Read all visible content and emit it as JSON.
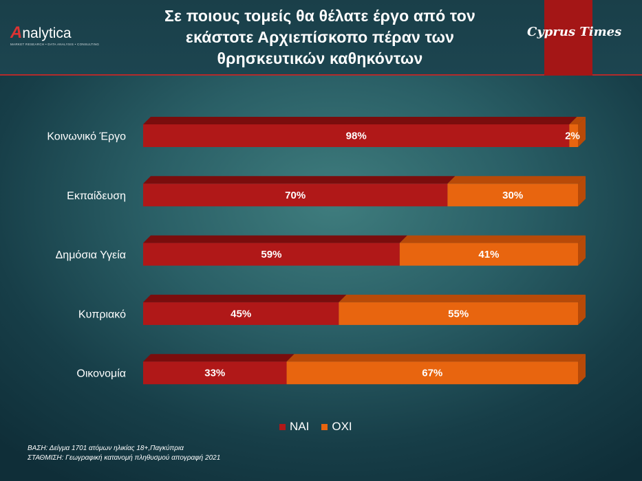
{
  "title_lines": [
    "Σε ποιους τομείς θα θέλατε έργο από τον",
    "εκάστοτε Αρχιεπίσκοπο πέραν των",
    "θρησκευτικών καθηκόντων"
  ],
  "logo": {
    "word": "nalytica",
    "initial": "A",
    "tagline": "MARKET RESEARCH • DATA ANALYSIS • CONSULTING"
  },
  "brand": "Cyprus Times",
  "colors": {
    "nai": "#b01818",
    "nai_top": "#7a0d0d",
    "oxi": "#e8650f",
    "oxi_top": "#b84a08",
    "accent": "#a41616"
  },
  "chart_data": {
    "type": "bar",
    "orientation": "horizontal",
    "stacked": true,
    "categories": [
      "Κοινωνικό Έργο",
      "Εκπαίδευση",
      "Δημόσια Υγεία",
      "Κυπριακό",
      "Οικονομία"
    ],
    "series": [
      {
        "name": "ΝΑΙ",
        "values": [
          98,
          70,
          59,
          45,
          33
        ],
        "labels": [
          "98%",
          "70%",
          "59%",
          "45%",
          "33%"
        ]
      },
      {
        "name": "ΟΧΙ",
        "values": [
          2,
          30,
          41,
          55,
          67
        ],
        "labels": [
          "2%",
          "30%",
          "41%",
          "55%",
          "67%"
        ]
      }
    ],
    "xlim": [
      0,
      100
    ],
    "legend_position": "bottom"
  },
  "legend": {
    "nai": "ΝΑΙ",
    "oxi": "ΟΧΙ"
  },
  "footnote": {
    "line1": "ΒΑΣΗ: Δείγμα 1701 ατόμων ηλικίας 18+,Παγκύπρια",
    "line2": "ΣΤΑΘΜΙΣΗ: Γεωγραφική κατανομή πληθυσμού απογραφή 2021"
  }
}
